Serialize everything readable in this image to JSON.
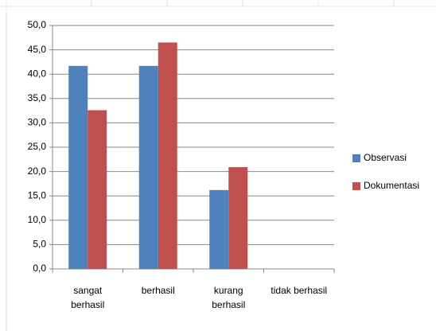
{
  "chart_data": {
    "type": "bar",
    "categories": [
      "sangat berhasil",
      "berhasil",
      "kurang berhasil",
      "tidak berhasil"
    ],
    "series": [
      {
        "name": "Observasi",
        "color": "#4f81bd",
        "values": [
          41.7,
          41.7,
          16.2,
          0
        ]
      },
      {
        "name": "Dokumentasi",
        "color": "#c0504d",
        "values": [
          32.6,
          46.5,
          20.9,
          0
        ]
      }
    ],
    "ylim": [
      0,
      50
    ],
    "yticks": [
      {
        "value": 0,
        "label": "0,0"
      },
      {
        "value": 5,
        "label": "5,0"
      },
      {
        "value": 10,
        "label": "10,0"
      },
      {
        "value": 15,
        "label": "15,0"
      },
      {
        "value": 20,
        "label": "20,0"
      },
      {
        "value": 25,
        "label": "25,0"
      },
      {
        "value": 30,
        "label": "30,0"
      },
      {
        "value": 35,
        "label": "35,0"
      },
      {
        "value": 40,
        "label": "40,0"
      },
      {
        "value": 45,
        "label": "45,0"
      },
      {
        "value": 50,
        "label": "50,0"
      }
    ],
    "grid": true,
    "legend": "right"
  }
}
